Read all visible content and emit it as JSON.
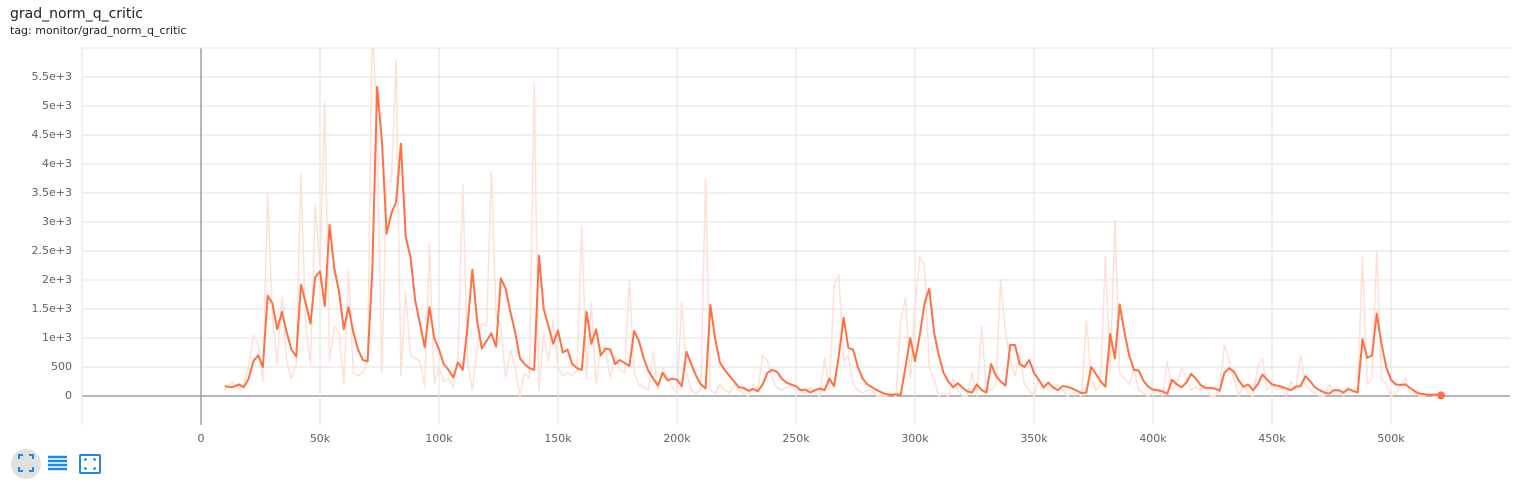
{
  "chart_data": {
    "type": "line",
    "title": "grad_norm_q_critic",
    "subtitle": "tag: monitor/grad_norm_q_critic",
    "x": [
      10000,
      13000,
      16000,
      18000,
      20000,
      22000,
      24000,
      26000,
      28000,
      30000,
      32000,
      34000,
      36000,
      38000,
      40000,
      42000,
      44000,
      46000,
      48000,
      50000,
      52000,
      54000,
      56000,
      58000,
      60000,
      62000,
      64000,
      66000,
      68000,
      70000,
      72000,
      74000,
      76000,
      78000,
      80000,
      82000,
      84000,
      86000,
      88000,
      90000,
      92000,
      94000,
      96000,
      98000,
      100000,
      102000,
      104000,
      106000,
      108000,
      110000,
      112000,
      114000,
      116000,
      118000,
      120000,
      122000,
      124000,
      126000,
      128000,
      130000,
      132000,
      134000,
      136000,
      138000,
      140000,
      142000,
      144000,
      146000,
      148000,
      150000,
      152000,
      154000,
      156000,
      158000,
      160000,
      162000,
      164000,
      166000,
      168000,
      170000,
      172000,
      174000,
      176000,
      178000,
      180000,
      182000,
      184000,
      186000,
      188000,
      190000,
      192000,
      194000,
      196000,
      198000,
      200000,
      202000,
      204000,
      206000,
      208000,
      210000,
      212000,
      214000,
      216000,
      218000,
      220000,
      222000,
      224000,
      226000,
      228000,
      230000,
      232000,
      234000,
      236000,
      238000,
      240000,
      242000,
      244000,
      246000,
      248000,
      250000,
      252000,
      254000,
      256000,
      258000,
      260000,
      262000,
      264000,
      266000,
      268000,
      270000,
      272000,
      274000,
      276000,
      278000,
      280000,
      282000,
      284000,
      286000,
      288000,
      290000,
      292000,
      294000,
      296000,
      298000,
      300000,
      302000,
      304000,
      306000,
      308000,
      310000,
      312000,
      314000,
      316000,
      318000,
      320000,
      322000,
      324000,
      326000,
      328000,
      330000,
      332000,
      334000,
      336000,
      338000,
      340000,
      342000,
      344000,
      346000,
      348000,
      350000,
      352000,
      354000,
      356000,
      358000,
      360000,
      362000,
      364000,
      366000,
      368000,
      370000,
      372000,
      374000,
      376000,
      378000,
      380000,
      382000,
      384000,
      386000,
      388000,
      390000,
      392000,
      394000,
      396000,
      398000,
      400000,
      402000,
      404000,
      406000,
      408000,
      410000,
      412000,
      414000,
      416000,
      418000,
      420000,
      422000,
      424000,
      426000,
      428000,
      430000,
      432000,
      434000,
      436000,
      438000,
      440000,
      442000,
      444000,
      446000,
      448000,
      450000,
      452000,
      454000,
      456000,
      458000,
      460000,
      462000,
      464000,
      466000,
      468000,
      470000,
      472000,
      474000,
      476000,
      478000,
      480000,
      482000,
      484000,
      486000,
      488000,
      490000,
      492000,
      494000,
      496000,
      498000,
      500000,
      502000,
      504000,
      506000,
      508000,
      510000,
      512000,
      514000,
      516000,
      518000,
      521000
    ],
    "series": [
      {
        "color": "#ffe0d6",
        "values": [
          100,
          250,
          120,
          200,
          500,
          1050,
          900,
          250,
          3480,
          1400,
          550,
          1700,
          600,
          300,
          550,
          3820,
          1200,
          550,
          3300,
          2200,
          5060,
          600,
          1200,
          1100,
          200,
          2160,
          400,
          350,
          400,
          600,
          6500,
          4500,
          400,
          3700,
          3700,
          5800,
          350,
          1800,
          700,
          650,
          600,
          150,
          2620,
          200,
          500,
          250,
          300,
          150,
          700,
          3650,
          600,
          100,
          800,
          1250,
          1200,
          3870,
          1400,
          1200,
          300,
          800,
          500,
          0,
          400,
          300,
          5400,
          100,
          1100,
          600,
          1300,
          500,
          350,
          400,
          350,
          450,
          2930,
          300,
          1600,
          200,
          850,
          800,
          300,
          700,
          450,
          400,
          2000,
          400,
          200,
          150,
          100,
          750,
          100,
          500,
          300,
          150,
          50,
          1620,
          400,
          100,
          50,
          100,
          3750,
          100,
          50,
          200,
          100,
          50,
          200,
          100,
          50,
          0,
          200,
          100,
          700,
          600,
          300,
          150,
          100,
          150,
          200,
          100,
          100,
          50,
          150,
          50,
          0,
          650,
          100,
          1900,
          2100,
          600,
          700,
          200,
          100,
          50,
          100,
          100,
          0,
          0,
          0,
          50,
          0,
          1300,
          1700,
          300,
          1500,
          2400,
          2250,
          500,
          300,
          0,
          50,
          0,
          300,
          100,
          0,
          0,
          400,
          0,
          1200,
          100,
          100,
          200,
          2000,
          1100,
          600,
          350,
          700,
          200,
          100,
          0,
          300,
          100,
          250,
          100,
          200,
          100,
          0,
          50,
          50,
          0,
          1300,
          300,
          100,
          200,
          2400,
          400,
          3030,
          400,
          300,
          200,
          450,
          100,
          50,
          0,
          50,
          100,
          0,
          600,
          100,
          200,
          500,
          300,
          100,
          150,
          100,
          200,
          0,
          0,
          100,
          880,
          600,
          300,
          0,
          200,
          50,
          0,
          500,
          650,
          100,
          200,
          100,
          150,
          0,
          250,
          100,
          700,
          200,
          100,
          50,
          0,
          0,
          200,
          50,
          100,
          0,
          150,
          50,
          100,
          2400,
          200,
          300,
          2500,
          300,
          200,
          0,
          50,
          200,
          300,
          50,
          50,
          0,
          0,
          50,
          0,
          10
        ]
      },
      {
        "color": "#ff7043",
        "values": [
          170,
          150,
          200,
          150,
          300,
          600,
          700,
          500,
          1730,
          1600,
          1150,
          1450,
          1100,
          800,
          680,
          1920,
          1600,
          1250,
          2050,
          2150,
          1550,
          2950,
          2200,
          1800,
          1150,
          1530,
          1100,
          800,
          620,
          600,
          2200,
          5330,
          4400,
          2800,
          3150,
          3350,
          4350,
          2750,
          2400,
          1650,
          1250,
          840,
          1530,
          1000,
          800,
          550,
          450,
          320,
          580,
          450,
          1200,
          2180,
          1300,
          820,
          950,
          1080,
          850,
          2030,
          1850,
          1450,
          1100,
          650,
          550,
          480,
          450,
          2420,
          1500,
          1200,
          900,
          1130,
          750,
          800,
          550,
          480,
          450,
          1450,
          900,
          1150,
          700,
          820,
          800,
          550,
          620,
          570,
          520,
          1120,
          950,
          650,
          430,
          300,
          180,
          400,
          270,
          300,
          280,
          170,
          760,
          550,
          350,
          200,
          130,
          1570,
          1000,
          580,
          450,
          350,
          250,
          150,
          140,
          90,
          120,
          80,
          200,
          400,
          450,
          420,
          300,
          230,
          200,
          170,
          100,
          110,
          60,
          100,
          130,
          100,
          300,
          170,
          700,
          1350,
          830,
          800,
          500,
          300,
          200,
          150,
          100,
          60,
          30,
          20,
          30,
          20,
          500,
          1000,
          600,
          1050,
          1600,
          1850,
          1100,
          700,
          400,
          250,
          150,
          220,
          140,
          80,
          60,
          200,
          100,
          60,
          550,
          350,
          250,
          180,
          880,
          880,
          550,
          500,
          620,
          400,
          280,
          150,
          230,
          150,
          100,
          170,
          160,
          130,
          90,
          50,
          60,
          500,
          380,
          250,
          160,
          1070,
          650,
          1580,
          1100,
          700,
          450,
          440,
          260,
          160,
          110,
          100,
          80,
          40,
          280,
          200,
          150,
          230,
          380,
          300,
          190,
          140,
          140,
          130,
          90,
          400,
          480,
          420,
          270,
          160,
          200,
          100,
          200,
          370,
          280,
          200,
          180,
          160,
          130,
          100,
          160,
          170,
          340,
          260,
          150,
          100,
          60,
          40,
          100,
          100,
          60,
          120,
          90,
          60,
          980,
          660,
          700,
          1420,
          900,
          500,
          280,
          200,
          190,
          200,
          140,
          80,
          40,
          30,
          20,
          25,
          10
        ]
      }
    ],
    "xlim": [
      -50000,
      550000
    ],
    "xticks": [
      0,
      {
        "value": 50000,
        "label": "50k"
      },
      {
        "value": 100000,
        "label": "100k"
      },
      {
        "value": 150000,
        "label": "150k"
      },
      {
        "value": 200000,
        "label": "200k"
      },
      {
        "value": 250000,
        "label": "250k"
      },
      {
        "value": 300000,
        "label": "300k"
      },
      {
        "value": 350000,
        "label": "350k"
      },
      {
        "value": 400000,
        "label": "400k"
      },
      {
        "value": 450000,
        "label": "450k"
      },
      {
        "value": 500000,
        "label": "500k"
      }
    ],
    "ylim": [
      -500,
      6000
    ],
    "yticks": [
      0,
      500,
      {
        "value": 1000,
        "label": "1e+3"
      },
      {
        "value": 1500,
        "label": "1.5e+3"
      },
      {
        "value": 2000,
        "label": "2e+3"
      },
      {
        "value": 2500,
        "label": "2.5e+3"
      },
      {
        "value": 3000,
        "label": "3e+3"
      },
      {
        "value": 3500,
        "label": "3.5e+3"
      },
      {
        "value": 4000,
        "label": "4e+3"
      },
      {
        "value": 4500,
        "label": "4.5e+3"
      },
      {
        "value": 5000,
        "label": "5e+3"
      },
      {
        "value": 5500,
        "label": "5.5e+3"
      }
    ],
    "grid": true
  }
}
